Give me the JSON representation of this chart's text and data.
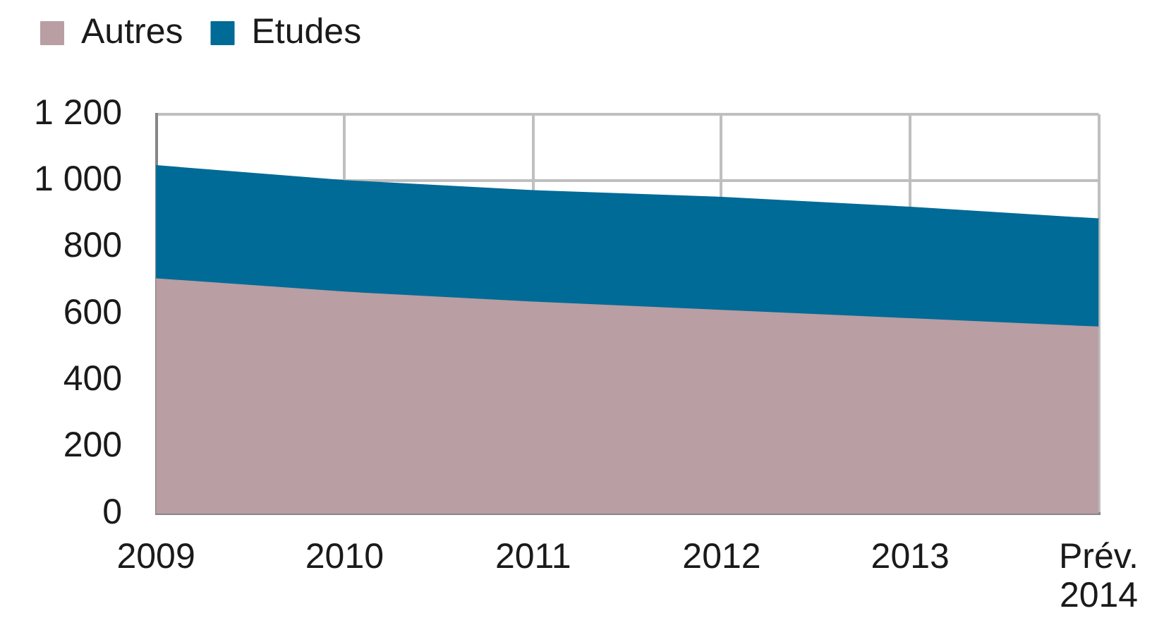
{
  "chart_data": {
    "type": "area",
    "categories": [
      "2009",
      "2010",
      "2011",
      "2012",
      "2013",
      "Prév. 2014"
    ],
    "series": [
      {
        "name": "Autres",
        "color": "#b99ea3",
        "values": [
          705,
          665,
          635,
          610,
          585,
          560
        ]
      },
      {
        "name": "Etudes",
        "color": "#006b97",
        "values": [
          340,
          335,
          335,
          340,
          335,
          325
        ]
      }
    ],
    "stacked": true,
    "ylim": [
      0,
      1200
    ],
    "yticks": [
      0,
      200,
      400,
      600,
      800,
      {
        "value": 1000,
        "label": "1 000"
      },
      {
        "value": 1200,
        "label": "1 200"
      }
    ],
    "grid": true,
    "legend": "top left"
  }
}
